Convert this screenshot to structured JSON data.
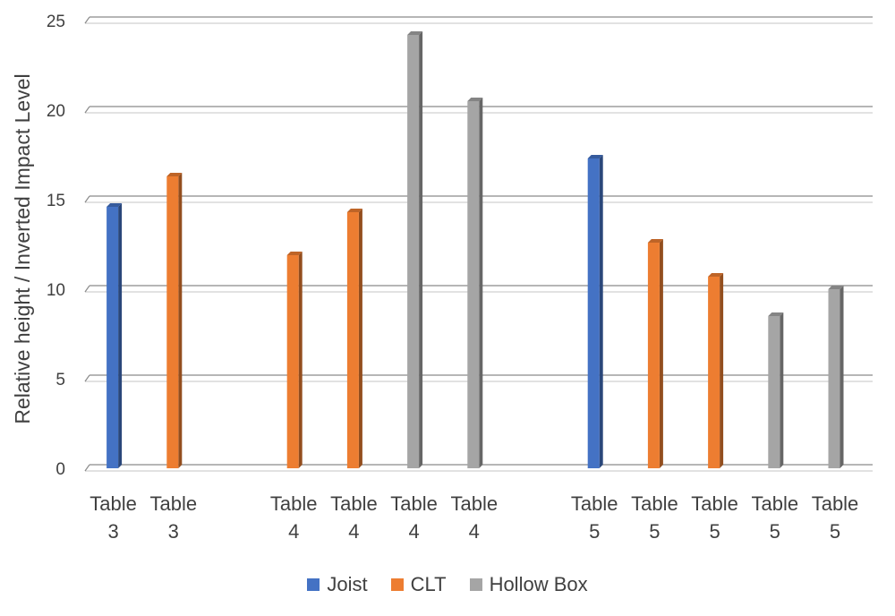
{
  "chart_data": {
    "type": "bar",
    "ylabel": "Relative height / Inverted Impact Level",
    "ylim": [
      0,
      25
    ],
    "yticks": [
      0,
      5,
      10,
      15,
      20,
      25
    ],
    "grid": true,
    "legend_position": "bottom",
    "series": [
      {
        "name": "Joist",
        "color": "#4472C4"
      },
      {
        "name": "CLT",
        "color": "#ED7D31"
      },
      {
        "name": "Hollow Box",
        "color": "#A5A5A5"
      }
    ],
    "groups": [
      {
        "bars": [
          {
            "label": [
              "Table",
              "3"
            ],
            "series": "Joist",
            "value": 14.6
          },
          {
            "label": [
              "Table",
              "3"
            ],
            "series": "CLT",
            "value": 16.3
          }
        ]
      },
      {
        "bars": [
          {
            "label": [
              "Table",
              "4"
            ],
            "series": "CLT",
            "value": 11.9
          },
          {
            "label": [
              "Table",
              "4"
            ],
            "series": "CLT",
            "value": 14.3
          },
          {
            "label": [
              "Table",
              "4"
            ],
            "series": "Hollow Box",
            "value": 24.2
          },
          {
            "label": [
              "Table",
              "4"
            ],
            "series": "Hollow Box",
            "value": 20.5
          }
        ]
      },
      {
        "bars": [
          {
            "label": [
              "Table",
              "5"
            ],
            "series": "Joist",
            "value": 17.3
          },
          {
            "label": [
              "Table",
              "5"
            ],
            "series": "CLT",
            "value": 12.6
          },
          {
            "label": [
              "Table",
              "5"
            ],
            "series": "CLT",
            "value": 10.7
          },
          {
            "label": [
              "Table",
              "5"
            ],
            "series": "Hollow Box",
            "value": 8.5
          },
          {
            "label": [
              "Table",
              "5"
            ],
            "series": "Hollow Box",
            "value": 10.0
          }
        ]
      }
    ]
  }
}
